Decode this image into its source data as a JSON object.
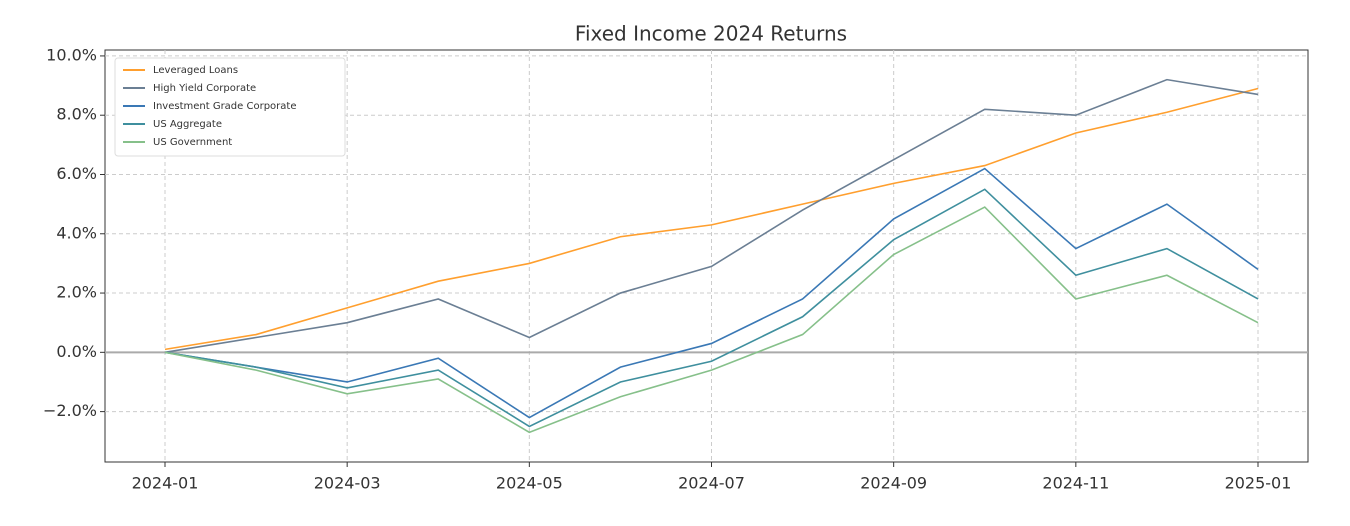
{
  "chart_data": {
    "type": "line",
    "title": "Fixed Income 2024 Returns",
    "x": [
      "2024-01",
      "2024-02",
      "2024-03",
      "2024-04",
      "2024-05",
      "2024-06",
      "2024-07",
      "2024-08",
      "2024-09",
      "2024-10",
      "2024-11",
      "2024-12",
      "2025-01"
    ],
    "xticks": [
      "2024-01",
      "2024-03",
      "2024-05",
      "2024-07",
      "2024-09",
      "2024-11",
      "2025-01"
    ],
    "ylim": [
      -3.7,
      10.2
    ],
    "yticks": [
      {
        "value": -2,
        "label": "−2.0%"
      },
      {
        "value": 0,
        "label": "0.0%"
      },
      {
        "value": 2,
        "label": "2.0%"
      },
      {
        "value": 4,
        "label": "4.0%"
      },
      {
        "value": 6,
        "label": "6.0%"
      },
      {
        "value": 8,
        "label": "8.0%"
      },
      {
        "value": 10,
        "label": "10.0%"
      }
    ],
    "grid": true,
    "legend": "upper-left",
    "series": [
      {
        "name": "Leveraged Loans",
        "color": "#ff9f2e",
        "values": [
          0.1,
          0.6,
          1.5,
          2.4,
          3.0,
          3.9,
          4.3,
          5.0,
          5.7,
          6.3,
          7.4,
          8.1,
          8.9
        ]
      },
      {
        "name": "High Yield Corporate",
        "color": "#6b7f94",
        "values": [
          0.0,
          0.5,
          1.0,
          1.8,
          0.5,
          2.0,
          2.9,
          4.8,
          6.5,
          8.2,
          8.0,
          9.2,
          8.7
        ]
      },
      {
        "name": "Investment Grade Corporate",
        "color": "#3a78b5",
        "values": [
          0.0,
          -0.5,
          -1.0,
          -0.2,
          -2.2,
          -0.5,
          0.3,
          1.8,
          4.5,
          6.2,
          3.5,
          5.0,
          2.8
        ]
      },
      {
        "name": "US Aggregate",
        "color": "#3f8f9e",
        "values": [
          0.0,
          -0.5,
          -1.2,
          -0.6,
          -2.5,
          -1.0,
          -0.3,
          1.2,
          3.8,
          5.5,
          2.6,
          3.5,
          1.8
        ]
      },
      {
        "name": "US Government",
        "color": "#86c08a",
        "values": [
          0.0,
          -0.6,
          -1.4,
          -0.9,
          -2.7,
          -1.5,
          -0.6,
          0.6,
          3.3,
          4.9,
          1.8,
          2.6,
          1.0
        ]
      }
    ]
  }
}
